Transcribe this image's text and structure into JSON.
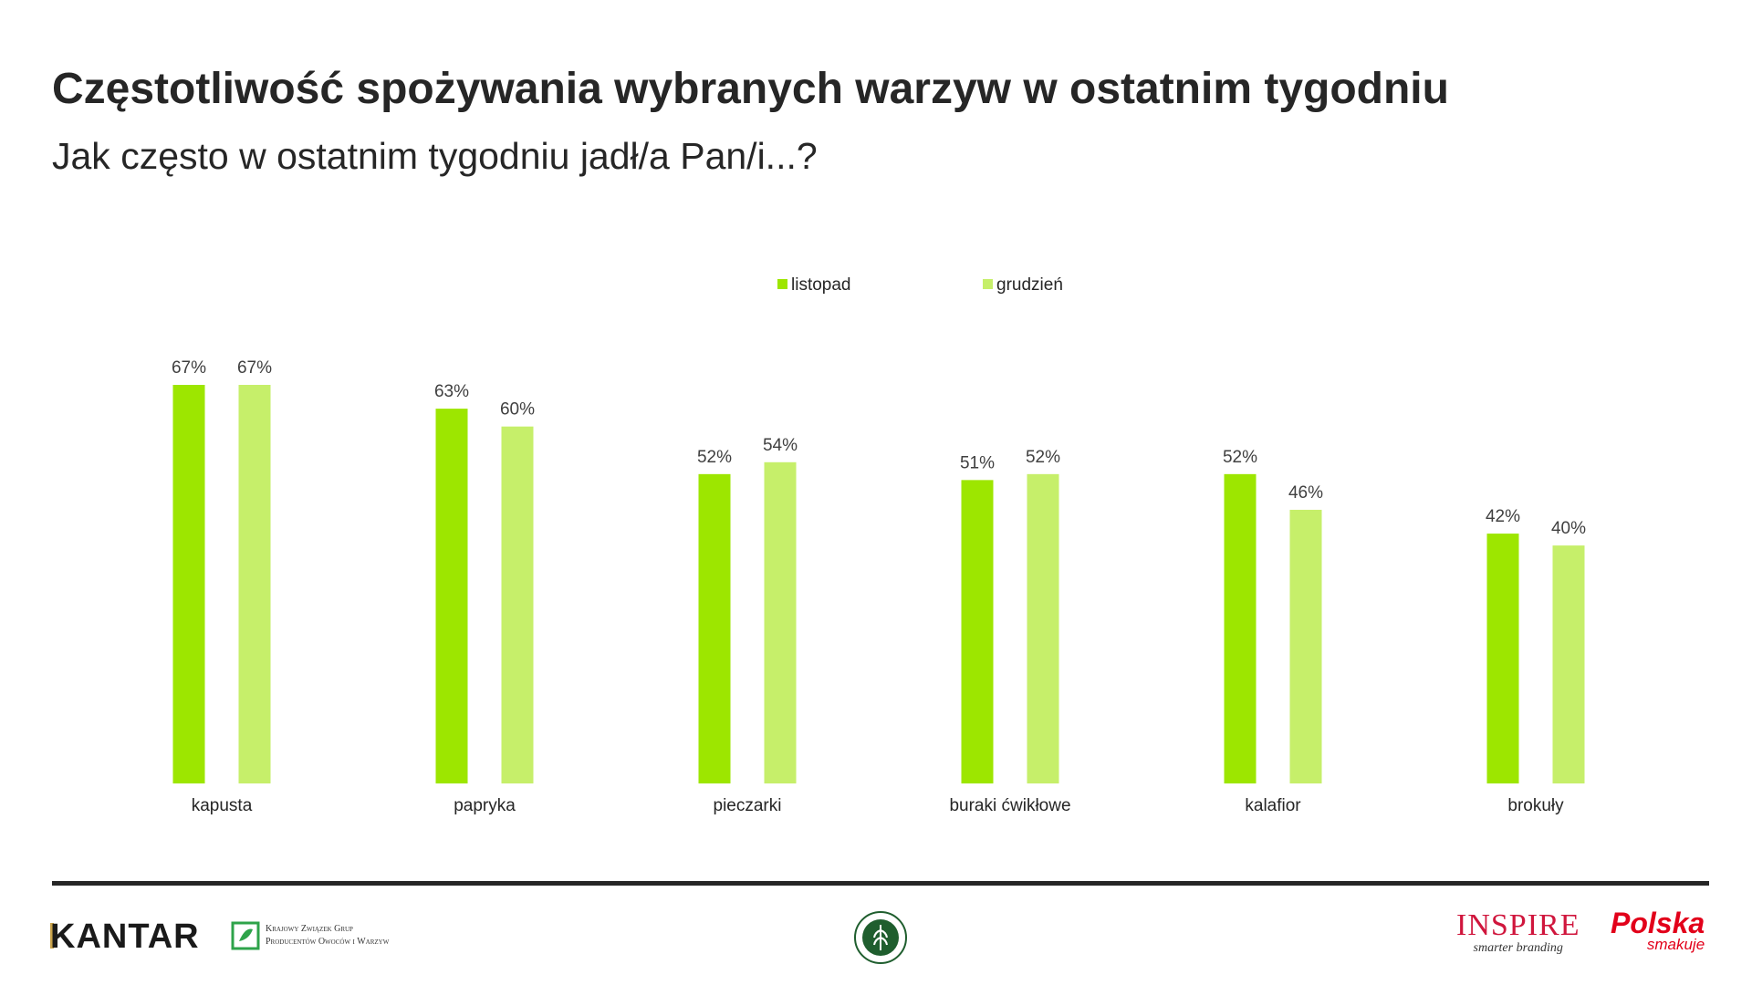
{
  "header": {
    "title": "Częstotliwość spożywania wybranych warzyw w ostatnim tygodniu",
    "subtitle": "Jak często w ostatnim tygodniu jadł/a Pan/i...?"
  },
  "chart_data": {
    "type": "bar",
    "categories": [
      "kapusta",
      "papryka",
      "pieczarki",
      "buraki ćwikłowe",
      "kalafior",
      "brokuły"
    ],
    "series": [
      {
        "name": "listopad",
        "values": [
          67,
          63,
          52,
          51,
          52,
          42
        ],
        "labels": [
          "67%",
          "63%",
          "52%",
          "51%",
          "52%",
          "42%"
        ],
        "color": "#9de600"
      },
      {
        "name": "grudzień",
        "values": [
          67,
          60,
          54,
          52,
          46,
          40
        ],
        "labels": [
          "67%",
          "60%",
          "54%",
          "52%",
          "46%",
          "40%"
        ],
        "color": "#c6ef6a"
      }
    ],
    "ylim": [
      0,
      67
    ],
    "grid": false,
    "legend_position": "top-center"
  },
  "footer": {
    "logos": {
      "kantar": "KANTAR",
      "kzgp_line1": "Krajowy Związek Grup",
      "kzgp_line2": "Producentów Owoców i Warzyw",
      "inspire": "INSPIRE",
      "inspire_tagline": "smarter branding",
      "polska": "Polska",
      "polska_sub": "smakuje"
    }
  }
}
